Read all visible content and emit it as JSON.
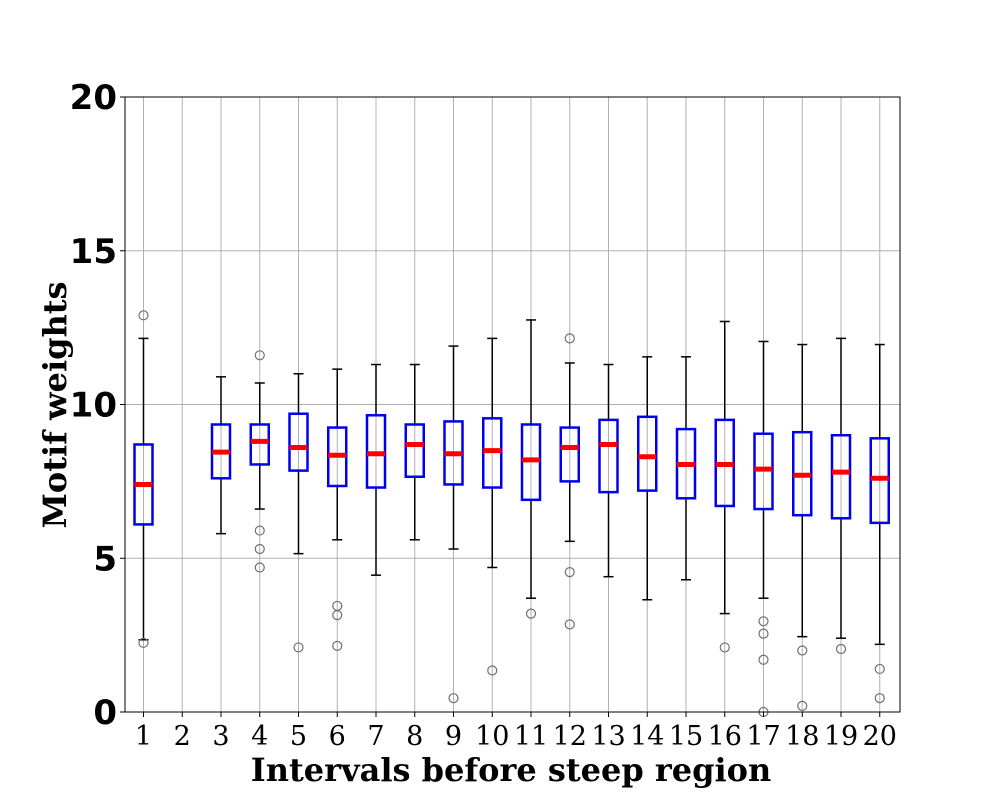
{
  "chart_data": {
    "type": "box",
    "title": "",
    "xlabel": "Intervals before steep region",
    "ylabel": "Motif weights",
    "ylim": [
      0,
      20
    ],
    "yticks": [
      0,
      5,
      10,
      15,
      20
    ],
    "grid": true,
    "colors": {
      "box": "#0000ee",
      "median": "#ff0000",
      "whisker": "#000000",
      "outlier": "#707070",
      "grid": "#b0b0b0"
    },
    "categories": [
      "1",
      "2",
      "3",
      "4",
      "5",
      "6",
      "7",
      "8",
      "9",
      "10",
      "11",
      "12",
      "13",
      "14",
      "15",
      "16",
      "17",
      "18",
      "19",
      "20"
    ],
    "boxes": [
      {
        "x": "1",
        "q1": 6.1,
        "median": 7.4,
        "q3": 8.7,
        "low": 2.35,
        "high": 12.15,
        "outliers": [
          12.9,
          2.25
        ]
      },
      {
        "x": "2",
        "empty": true
      },
      {
        "x": "3",
        "q1": 7.6,
        "median": 8.45,
        "q3": 9.35,
        "low": 5.8,
        "high": 10.9,
        "outliers": []
      },
      {
        "x": "4",
        "q1": 8.05,
        "median": 8.8,
        "q3": 9.35,
        "low": 6.6,
        "high": 10.7,
        "outliers": [
          11.6,
          5.9,
          5.3,
          4.7
        ]
      },
      {
        "x": "5",
        "q1": 7.85,
        "median": 8.6,
        "q3": 9.7,
        "low": 5.15,
        "high": 11.0,
        "outliers": [
          2.1
        ]
      },
      {
        "x": "6",
        "q1": 7.35,
        "median": 8.35,
        "q3": 9.25,
        "low": 5.6,
        "high": 11.15,
        "outliers": [
          3.45,
          3.15,
          2.15
        ]
      },
      {
        "x": "7",
        "q1": 7.3,
        "median": 8.4,
        "q3": 9.65,
        "low": 4.45,
        "high": 11.3,
        "outliers": []
      },
      {
        "x": "8",
        "q1": 7.65,
        "median": 8.7,
        "q3": 9.35,
        "low": 5.6,
        "high": 11.3,
        "outliers": []
      },
      {
        "x": "9",
        "q1": 7.4,
        "median": 8.4,
        "q3": 9.45,
        "low": 5.3,
        "high": 11.9,
        "outliers": [
          0.45
        ]
      },
      {
        "x": "10",
        "q1": 7.3,
        "median": 8.5,
        "q3": 9.55,
        "low": 4.7,
        "high": 12.15,
        "outliers": [
          1.35
        ]
      },
      {
        "x": "11",
        "q1": 6.9,
        "median": 8.2,
        "q3": 9.35,
        "low": 3.7,
        "high": 12.75,
        "outliers": [
          3.2
        ]
      },
      {
        "x": "12",
        "q1": 7.5,
        "median": 8.6,
        "q3": 9.25,
        "low": 5.55,
        "high": 11.35,
        "outliers": [
          12.15,
          4.55,
          2.85
        ]
      },
      {
        "x": "13",
        "q1": 7.15,
        "median": 8.7,
        "q3": 9.5,
        "low": 4.4,
        "high": 11.3,
        "outliers": []
      },
      {
        "x": "14",
        "q1": 7.2,
        "median": 8.3,
        "q3": 9.6,
        "low": 3.65,
        "high": 11.55,
        "outliers": []
      },
      {
        "x": "15",
        "q1": 6.95,
        "median": 8.05,
        "q3": 9.2,
        "low": 4.3,
        "high": 11.55,
        "outliers": []
      },
      {
        "x": "16",
        "q1": 6.7,
        "median": 8.05,
        "q3": 9.5,
        "low": 3.2,
        "high": 12.7,
        "outliers": [
          2.1
        ]
      },
      {
        "x": "17",
        "q1": 6.6,
        "median": 7.9,
        "q3": 9.05,
        "low": 3.7,
        "high": 12.05,
        "outliers": [
          2.95,
          2.55,
          1.7,
          0.0
        ]
      },
      {
        "x": "18",
        "q1": 6.4,
        "median": 7.7,
        "q3": 9.1,
        "low": 2.45,
        "high": 11.95,
        "outliers": [
          2.0,
          0.2
        ]
      },
      {
        "x": "19",
        "q1": 6.3,
        "median": 7.8,
        "q3": 9.0,
        "low": 2.4,
        "high": 12.15,
        "outliers": [
          2.05
        ]
      },
      {
        "x": "20",
        "q1": 6.15,
        "median": 7.6,
        "q3": 8.9,
        "low": 2.2,
        "high": 11.95,
        "outliers": [
          1.4,
          0.45
        ]
      }
    ]
  }
}
